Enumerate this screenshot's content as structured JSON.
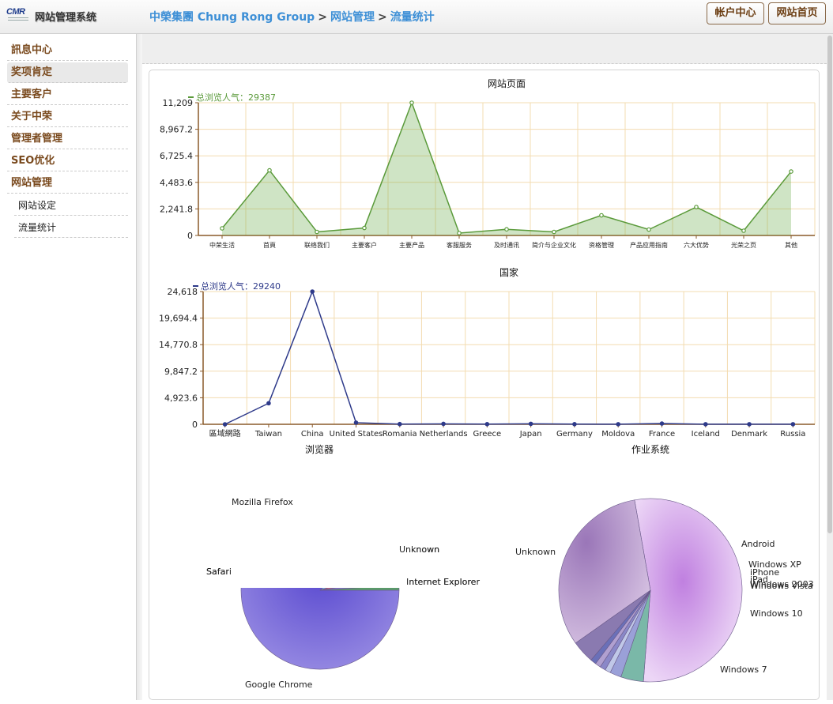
{
  "header": {
    "logo_text": "CMR",
    "system_title": "网站管理系统",
    "breadcrumb": [
      "中榮集團 Chung Rong Group",
      "网站管理",
      "流量统计"
    ],
    "breadcrumb_separator": ">",
    "account_button": "帐户中心",
    "home_button": "网站首页"
  },
  "sidebar": {
    "items": [
      "訊息中心",
      "奖项肯定",
      "主要客户",
      "关于中荣",
      "管理者管理",
      "SEO优化",
      "网站管理"
    ],
    "active_index": 1,
    "subitems": [
      "网站设定",
      "流量统计"
    ]
  },
  "colors": {
    "accent_link": "#3d8fd6",
    "sidebar_text": "#7a4a1e",
    "pages_series": "#5a9a3a",
    "country_series": "#2e3a8a"
  },
  "chart_data": [
    {
      "type": "area",
      "title": "网站页面",
      "legend": "总浏览人气：29387",
      "categories": [
        "中荣生活",
        "首頁",
        "联络我们",
        "主要客户",
        "主要产品",
        "客服服务",
        "及时通讯",
        "简介与企业文化",
        "资格管理",
        "产品应用指南",
        "六大优势",
        "光荣之页",
        "其他"
      ],
      "values": [
        600,
        5500,
        300,
        630,
        11209,
        200,
        520,
        300,
        1700,
        500,
        2400,
        400,
        5400
      ],
      "yticks": [
        "0",
        "2,241.8",
        "4,483.6",
        "6,725.4",
        "8,967.2",
        "11,209"
      ],
      "ylim": [
        0,
        11209
      ],
      "grid": true
    },
    {
      "type": "line",
      "title": "国家",
      "legend": "总浏览人气：29240",
      "categories": [
        "區域網路",
        "Taiwan",
        "China",
        "United States",
        "Romania",
        "Netherlands",
        "Greece",
        "Japan",
        "Germany",
        "Moldova",
        "France",
        "Iceland",
        "Denmark",
        "Russia"
      ],
      "values": [
        0,
        3900,
        24618,
        300,
        40,
        80,
        30,
        90,
        30,
        20,
        140,
        20,
        20,
        20
      ],
      "yticks": [
        "0",
        "4,923.6",
        "9,847.2",
        "14,770.8",
        "19,694.4",
        "24,618"
      ],
      "ylim": [
        0,
        24618
      ],
      "grid": true
    },
    {
      "type": "pie",
      "title": "浏览器",
      "labels": [
        "Google Chrome",
        "Mozilla Firefox",
        "Safari",
        "Unknown",
        "Internet Explorer"
      ],
      "values": [
        88,
        7,
        2.5,
        1.5,
        1
      ]
    },
    {
      "type": "pie",
      "title": "作业系统",
      "labels": [
        "Unknown",
        "Android",
        "Windows XP",
        "iPhone",
        "iPad",
        "Windows Vista",
        "Windows 2003",
        "Windows 10",
        "Windows 7"
      ],
      "values": [
        54,
        4,
        2,
        1,
        1,
        1,
        1,
        4,
        32
      ]
    }
  ]
}
